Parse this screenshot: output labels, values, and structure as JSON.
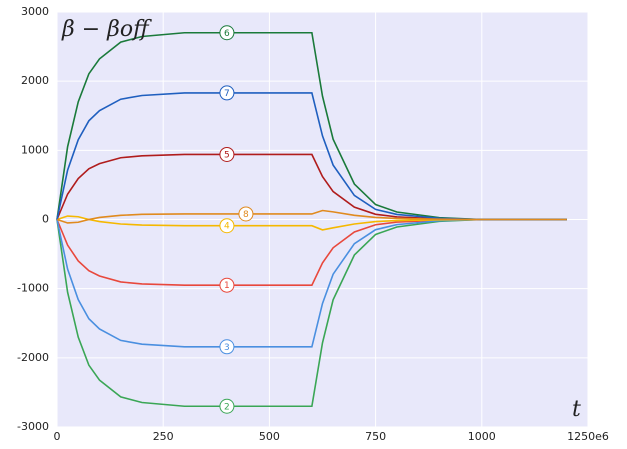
{
  "chart_data": {
    "type": "line",
    "y_label": "β − βoff",
    "x_label": "t",
    "x": [
      0,
      25,
      50,
      75,
      100,
      150,
      200,
      300,
      400,
      500,
      600,
      625,
      650,
      700,
      750,
      800,
      900,
      1000,
      1100,
      1200
    ],
    "series": [
      {
        "name": "1",
        "color": "#e8483c",
        "values": [
          0,
          -371,
          -599,
          -741,
          -817,
          -903,
          -931,
          -950,
          -950,
          -950,
          -950,
          -627,
          -409,
          -181,
          -76,
          -38,
          -10,
          0,
          0,
          0
        ]
      },
      {
        "name": "2",
        "color": "#3aa655",
        "values": [
          0,
          -1053,
          -1701,
          -2106,
          -2322,
          -2565,
          -2646,
          -2700,
          -2700,
          -2700,
          -2700,
          -1782,
          -1161,
          -513,
          -216,
          -108,
          -27,
          0,
          0,
          0
        ]
      },
      {
        "name": "3",
        "color": "#4a8fe0",
        "values": [
          0,
          -718,
          -1159,
          -1435,
          -1582,
          -1748,
          -1803,
          -1840,
          -1840,
          -1840,
          -1840,
          -1214,
          -791,
          -350,
          -147,
          -74,
          -18,
          0,
          0,
          0
        ]
      },
      {
        "name": "4",
        "color": "#f5b800",
        "values": [
          0,
          50,
          40,
          0,
          -30,
          -65,
          -80,
          -90,
          -90,
          -90,
          -90,
          -150,
          -120,
          -65,
          -30,
          -15,
          -5,
          0,
          0,
          0
        ]
      },
      {
        "name": "5",
        "color": "#b01c1c",
        "values": [
          0,
          367,
          592,
          733,
          808,
          893,
          921,
          940,
          940,
          940,
          940,
          620,
          404,
          179,
          75,
          38,
          9,
          0,
          0,
          0
        ]
      },
      {
        "name": "6",
        "color": "#1a7a3a",
        "values": [
          0,
          1053,
          1701,
          2106,
          2322,
          2565,
          2646,
          2700,
          2700,
          2700,
          2700,
          1782,
          1161,
          513,
          216,
          108,
          27,
          0,
          0,
          0
        ]
      },
      {
        "name": "7",
        "color": "#1f5fbf",
        "values": [
          0,
          714,
          1153,
          1427,
          1574,
          1739,
          1793,
          1830,
          1830,
          1830,
          1830,
          1208,
          787,
          348,
          146,
          73,
          18,
          0,
          0,
          0
        ]
      },
      {
        "name": "8",
        "color": "#e08a1e",
        "values": [
          0,
          -50,
          -40,
          0,
          30,
          60,
          75,
          80,
          80,
          80,
          80,
          130,
          110,
          60,
          30,
          15,
          5,
          0,
          0,
          0
        ]
      }
    ],
    "xlim": [
      0,
      1250
    ],
    "xticks": [
      0,
      250,
      500,
      750,
      1000,
      {
        "value": 1250,
        "label": "1250e6"
      }
    ],
    "ylim": [
      -3000,
      3000
    ],
    "yticks": [
      -3000,
      -2000,
      -1000,
      0,
      1000,
      2000,
      3000
    ],
    "grid": true
  }
}
